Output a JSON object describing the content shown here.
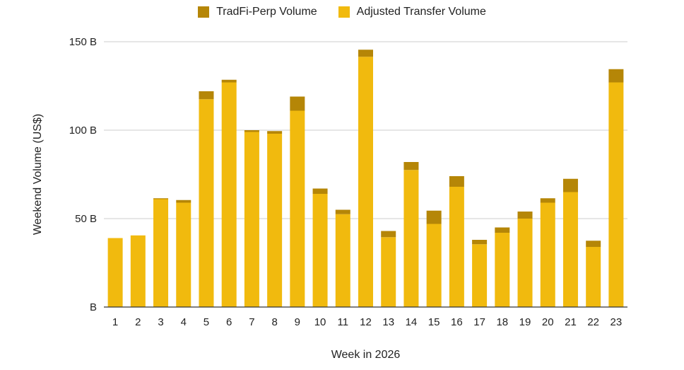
{
  "chart_data": {
    "type": "bar",
    "stacked": true,
    "xlabel": "Week in 2026",
    "ylabel": "Weekend Volume (US$)",
    "ylim": [
      0,
      150
    ],
    "y_ticks": [
      0,
      50,
      100,
      150
    ],
    "y_tick_labels": [
      "B",
      "50 B",
      "100 B",
      "150 B"
    ],
    "grid": true,
    "legend_position": "top",
    "categories": [
      "1",
      "2",
      "3",
      "4",
      "5",
      "6",
      "7",
      "8",
      "9",
      "10",
      "11",
      "12",
      "13",
      "14",
      "15",
      "16",
      "17",
      "18",
      "19",
      "20",
      "21",
      "22",
      "23"
    ],
    "series": [
      {
        "name": "Adjusted Transfer Volume",
        "color": "#F1BA0E",
        "values": [
          39,
          40.5,
          61,
          59,
          117.5,
          127,
          99,
          98,
          111,
          64,
          52.5,
          141.5,
          39.5,
          77.5,
          47,
          68,
          35.5,
          42,
          50,
          59,
          65,
          34,
          127
        ]
      },
      {
        "name": "TradFi-Perp Volume",
        "color": "#B58607",
        "values": [
          0,
          0,
          0.5,
          1.5,
          4.5,
          1.5,
          1,
          1.5,
          8,
          3,
          2.5,
          4,
          3.5,
          4.5,
          7.5,
          6,
          2.5,
          3,
          4,
          2.5,
          7.5,
          3.5,
          7.5
        ]
      }
    ]
  }
}
